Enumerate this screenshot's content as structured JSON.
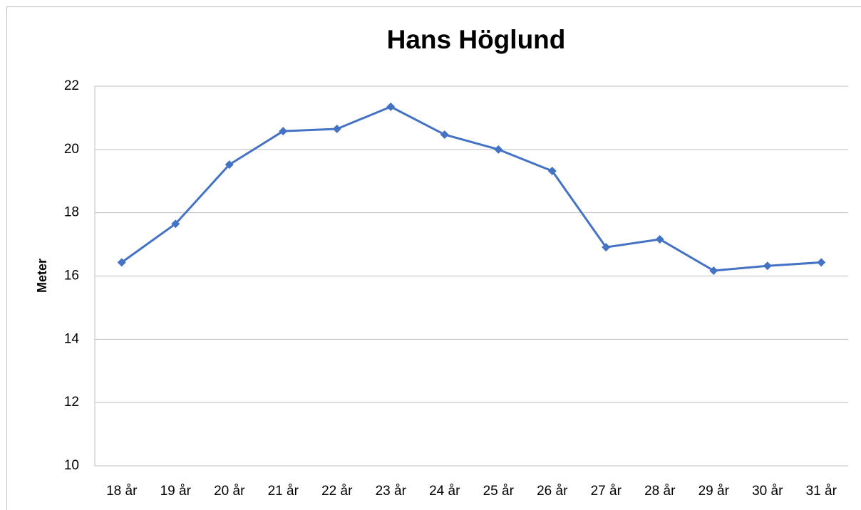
{
  "chart_data": {
    "type": "line",
    "title": "Hans Höglund",
    "y_label": "Meter",
    "categories": [
      "18 år",
      "19 år",
      "20 år",
      "21 år",
      "22 år",
      "23 år",
      "24 år",
      "25 år",
      "26 år",
      "27 år",
      "28 år",
      "29 år",
      "30 år",
      "31 år"
    ],
    "series": [
      {
        "name": "Hans Höglund",
        "color": "#4472c4",
        "values": [
          16.43,
          17.65,
          19.52,
          20.58,
          20.65,
          21.35,
          20.47,
          20.0,
          19.32,
          16.91,
          17.16,
          16.17,
          16.32,
          16.43
        ]
      }
    ],
    "ylim": [
      10,
      22
    ],
    "yticks": [
      10,
      12,
      14,
      16,
      18,
      20,
      22
    ],
    "grid": true
  }
}
